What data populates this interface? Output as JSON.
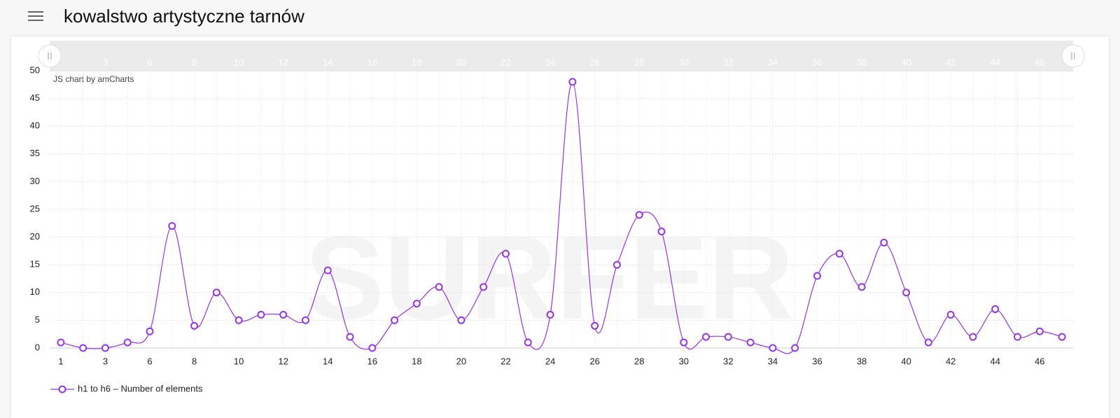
{
  "header": {
    "title": "kowalstwo artystyczne tarnów"
  },
  "chart_data": {
    "type": "line",
    "credit": "JS chart by amCharts",
    "watermark": "SURFER",
    "categories": [
      1,
      null,
      3,
      null,
      6,
      null,
      8,
      null,
      10,
      null,
      12,
      null,
      14,
      null,
      16,
      null,
      18,
      null,
      20,
      null,
      22,
      null,
      24,
      null,
      26,
      null,
      28,
      null,
      30,
      null,
      32,
      null,
      34,
      null,
      36,
      null,
      38,
      null,
      40,
      null,
      42,
      null,
      44,
      null,
      46,
      null
    ],
    "series": [
      {
        "name": "h1 to h6 – Number of elements",
        "color": "#9933e6",
        "values": [
          1,
          0,
          0,
          1,
          3,
          22,
          4,
          10,
          5,
          6,
          6,
          5,
          14,
          2,
          0,
          5,
          8,
          11,
          5,
          11,
          17,
          1,
          6,
          48,
          4,
          15,
          24,
          21,
          1,
          2,
          2,
          1,
          0,
          0,
          13,
          17,
          11,
          19,
          10,
          1,
          6,
          2,
          7,
          2,
          3,
          2
        ]
      }
    ],
    "ylim": [
      0,
      50
    ],
    "yticks": [
      0,
      5,
      10,
      15,
      20,
      25,
      30,
      35,
      40,
      45,
      50
    ],
    "grid": true,
    "smooth": true
  }
}
